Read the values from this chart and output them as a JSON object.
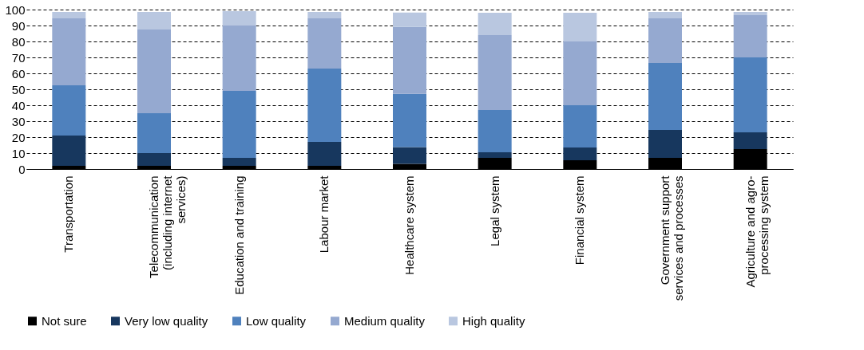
{
  "chart_data": {
    "type": "bar",
    "stacked": true,
    "categories": [
      "Transportation",
      "Telecommunication (including internet services)",
      "Education and training",
      "Labour market",
      "Healthcare system",
      "Legal system",
      "Financial system",
      "Government support services and processes",
      "Agriculture and agro-processing system"
    ],
    "series": [
      {
        "name": "Not sure",
        "color": "#000000",
        "values": [
          2,
          2,
          2,
          2,
          3.3,
          7,
          5.5,
          7,
          12.5
        ]
      },
      {
        "name": "Very low quality",
        "color": "#17375e",
        "values": [
          19,
          8,
          5,
          15,
          10.4,
          3.5,
          8,
          17.5,
          10.5
        ]
      },
      {
        "name": "Low quality",
        "color": "#4f81bd",
        "values": [
          31.5,
          25,
          42,
          46,
          33.4,
          26.5,
          26.5,
          42,
          47
        ]
      },
      {
        "name": "Medium quality",
        "color": "#95a9d0",
        "values": [
          42,
          52.5,
          41,
          31.5,
          42,
          47,
          40,
          28,
          26.5
        ]
      },
      {
        "name": "High quality",
        "color": "#b9c7e0",
        "values": [
          4,
          11,
          9,
          4,
          9,
          14,
          18,
          4,
          2
        ]
      }
    ],
    "ylim": [
      0,
      100
    ],
    "yticks": [
      0,
      10,
      20,
      30,
      40,
      50,
      60,
      70,
      80,
      90,
      100
    ],
    "grid": "y",
    "legend": "bottom"
  }
}
